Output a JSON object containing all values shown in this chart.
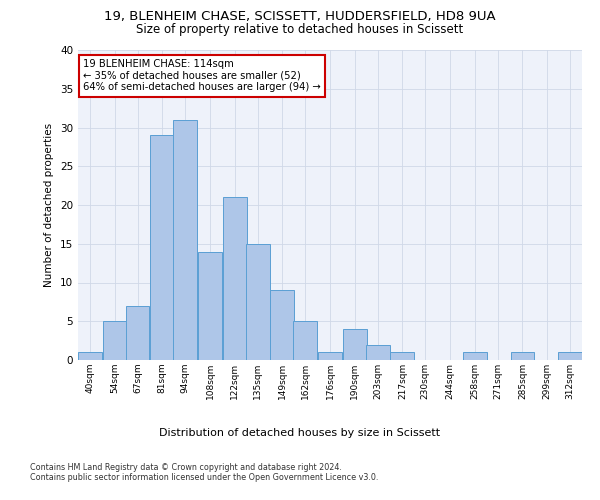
{
  "title_line1": "19, BLENHEIM CHASE, SCISSETT, HUDDERSFIELD, HD8 9UA",
  "title_line2": "Size of property relative to detached houses in Scissett",
  "xlabel": "Distribution of detached houses by size in Scissett",
  "ylabel": "Number of detached properties",
  "footnote": "Contains HM Land Registry data © Crown copyright and database right 2024.\nContains public sector information licensed under the Open Government Licence v3.0.",
  "bin_labels": [
    "40sqm",
    "54sqm",
    "67sqm",
    "81sqm",
    "94sqm",
    "108sqm",
    "122sqm",
    "135sqm",
    "149sqm",
    "162sqm",
    "176sqm",
    "190sqm",
    "203sqm",
    "217sqm",
    "230sqm",
    "244sqm",
    "258sqm",
    "271sqm",
    "285sqm",
    "299sqm",
    "312sqm"
  ],
  "bar_heights": [
    1,
    5,
    7,
    29,
    31,
    14,
    21,
    15,
    9,
    5,
    1,
    4,
    2,
    1,
    0,
    0,
    1,
    0,
    1,
    0,
    1
  ],
  "bar_color": "#aec6e8",
  "bar_edge_color": "#5a9fd4",
  "grid_color": "#d0d8e8",
  "background_color": "#eef2fa",
  "annotation_text": "19 BLENHEIM CHASE: 114sqm\n← 35% of detached houses are smaller (52)\n64% of semi-detached houses are larger (94) →",
  "annotation_box_color": "#ffffff",
  "annotation_border_color": "#cc0000",
  "ylim": [
    0,
    40
  ],
  "yticks": [
    0,
    5,
    10,
    15,
    20,
    25,
    30,
    35,
    40
  ],
  "bin_width": 13.5
}
